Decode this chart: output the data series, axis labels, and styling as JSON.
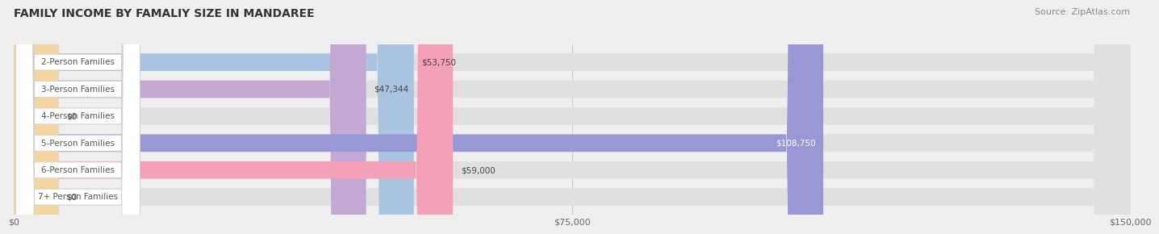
{
  "title": "FAMILY INCOME BY FAMALIY SIZE IN MANDAREE",
  "source": "Source: ZipAtlas.com",
  "categories": [
    "2-Person Families",
    "3-Person Families",
    "4-Person Families",
    "5-Person Families",
    "6-Person Families",
    "7+ Person Families"
  ],
  "values": [
    53750,
    47344,
    0,
    108750,
    59000,
    0
  ],
  "bar_colors": [
    "#a8c4e0",
    "#c4a8d4",
    "#7ececa",
    "#9898d4",
    "#f4a0b8",
    "#f4d4a0"
  ],
  "xlim": [
    0,
    150000
  ],
  "xticks": [
    0,
    75000,
    150000
  ],
  "xtick_labels": [
    "$0",
    "$75,000",
    "$150,000"
  ],
  "title_fontsize": 10,
  "source_fontsize": 8,
  "label_fontsize": 7.5,
  "value_fontsize": 7.5,
  "background_color": "#efefef",
  "bar_background_color": "#e0e0e0",
  "bar_height": 0.65,
  "label_box_color": "#ffffff"
}
